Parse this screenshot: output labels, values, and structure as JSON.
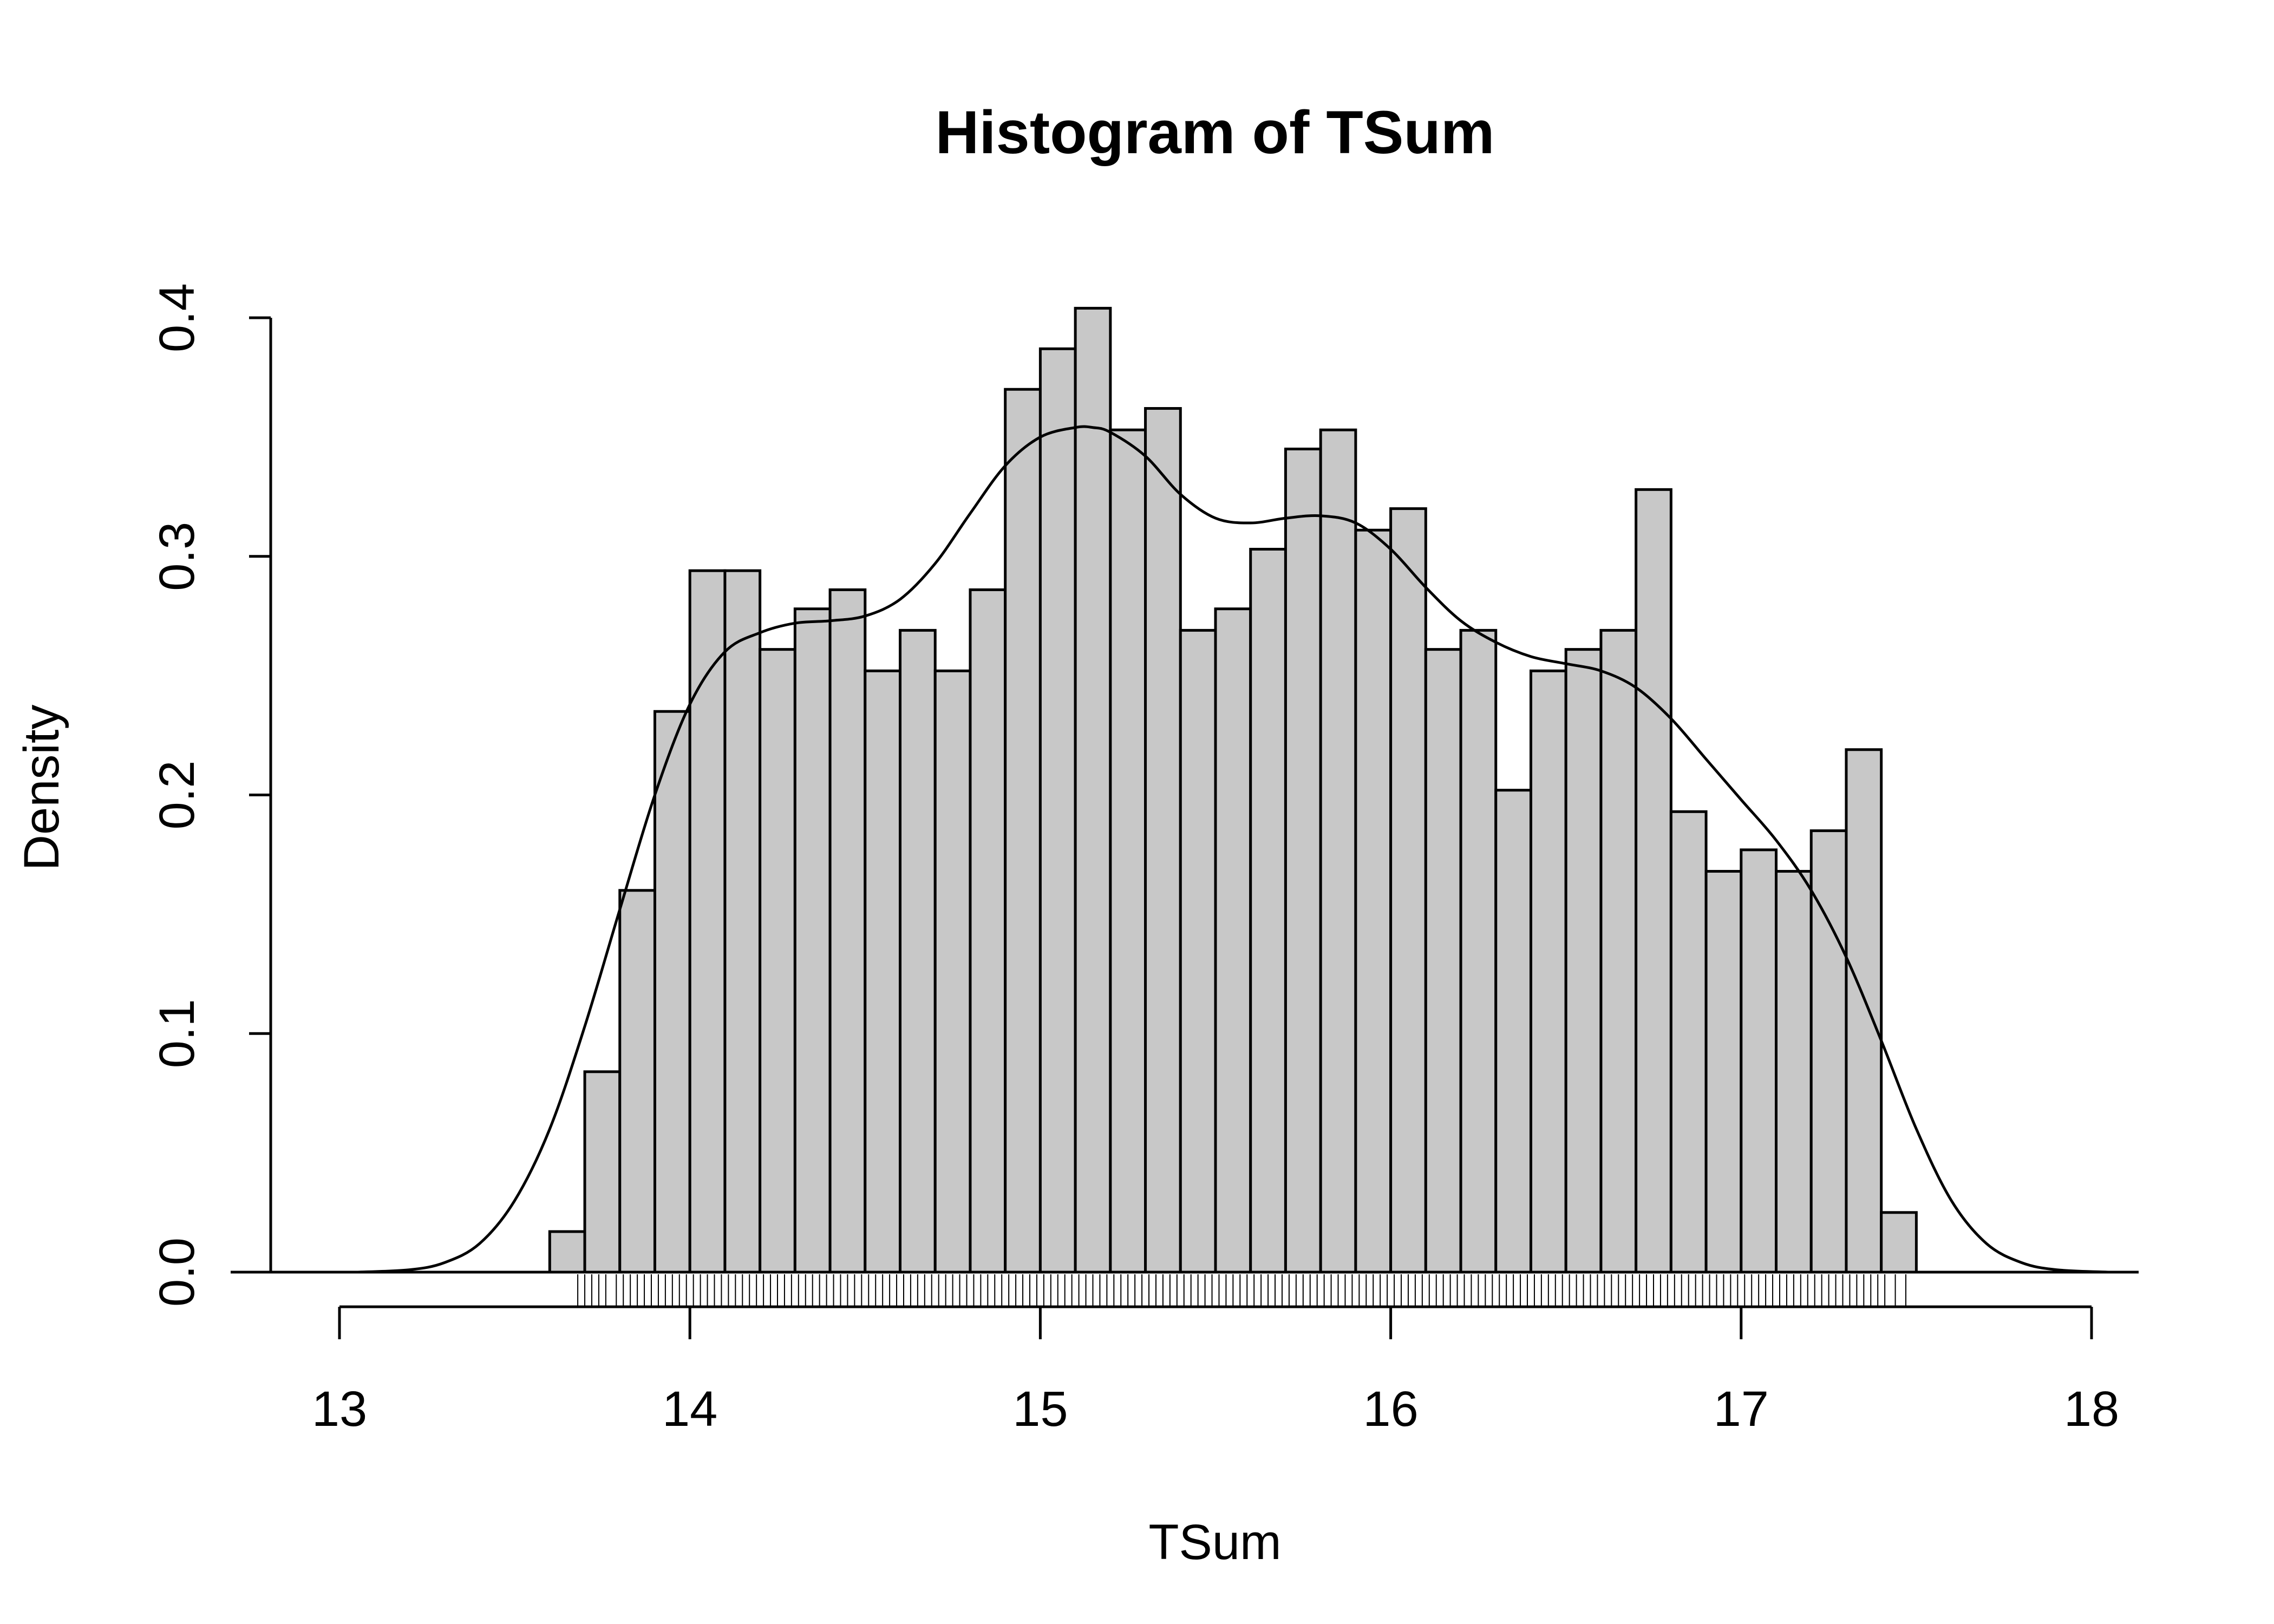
{
  "chart_data": {
    "type": "bar",
    "title": "Histogram of TSum",
    "xlabel": "TSum",
    "ylabel": "Density",
    "xlim": [
      12.8,
      18.1
    ],
    "ylim": [
      0,
      0.4
    ],
    "x_ticks": [
      13,
      14,
      15,
      16,
      17,
      18
    ],
    "y_ticks": [
      "0.0",
      "0.1",
      "0.2",
      "0.3",
      "0.4"
    ],
    "bin_width": 0.1,
    "bin_start": 13.6,
    "values": [
      0.017,
      0.084,
      0.16,
      0.235,
      0.294,
      0.294,
      0.261,
      0.278,
      0.286,
      0.252,
      0.269,
      0.252,
      0.286,
      0.37,
      0.387,
      0.404,
      0.353,
      0.362,
      0.269,
      0.278,
      0.303,
      0.345,
      0.353,
      0.311,
      0.32,
      0.261,
      0.269,
      0.202,
      0.252,
      0.261,
      0.269,
      0.328,
      0.193,
      0.168,
      0.177,
      0.168,
      0.185,
      0.219,
      0.025
    ],
    "density_curve": {
      "x": [
        13.05,
        13.2,
        13.3,
        13.4,
        13.5,
        13.6,
        13.7,
        13.8,
        13.9,
        14.0,
        14.1,
        14.2,
        14.3,
        14.4,
        14.5,
        14.6,
        14.7,
        14.8,
        14.9,
        15.0,
        15.1,
        15.15,
        15.2,
        15.3,
        15.4,
        15.5,
        15.6,
        15.7,
        15.8,
        15.9,
        16.0,
        16.1,
        16.2,
        16.3,
        16.4,
        16.5,
        16.6,
        16.7,
        16.8,
        16.9,
        17.0,
        17.1,
        17.2,
        17.3,
        17.4,
        17.5,
        17.6,
        17.7,
        17.8,
        17.9,
        18.05
      ],
      "y": [
        0.0,
        0.001,
        0.004,
        0.012,
        0.03,
        0.06,
        0.103,
        0.152,
        0.2,
        0.238,
        0.26,
        0.268,
        0.272,
        0.273,
        0.275,
        0.282,
        0.297,
        0.318,
        0.338,
        0.35,
        0.354,
        0.354,
        0.352,
        0.342,
        0.326,
        0.316,
        0.314,
        0.316,
        0.317,
        0.314,
        0.303,
        0.287,
        0.273,
        0.264,
        0.258,
        0.255,
        0.252,
        0.245,
        0.232,
        0.215,
        0.198,
        0.181,
        0.16,
        0.132,
        0.097,
        0.06,
        0.03,
        0.012,
        0.004,
        0.001,
        0.0
      ]
    },
    "rug_x": [
      13.68,
      13.7,
      13.72,
      13.74,
      13.76,
      13.79,
      13.81,
      13.83,
      13.85,
      13.87,
      13.89,
      13.91,
      13.93,
      13.95,
      13.97,
      13.99,
      14.01,
      14.03,
      14.05,
      14.07,
      14.09,
      14.11,
      14.13,
      14.15,
      14.17,
      14.19,
      14.21,
      14.23,
      14.25,
      14.27,
      14.29,
      14.31,
      14.33,
      14.35,
      14.37,
      14.39,
      14.41,
      14.43,
      14.45,
      14.47,
      14.49,
      14.51,
      14.53,
      14.55,
      14.57,
      14.59,
      14.61,
      14.63,
      14.65,
      14.67,
      14.69,
      14.71,
      14.73,
      14.75,
      14.77,
      14.79,
      14.81,
      14.83,
      14.85,
      14.87,
      14.89,
      14.91,
      14.93,
      14.95,
      14.97,
      14.99,
      15.01,
      15.03,
      15.05,
      15.07,
      15.09,
      15.11,
      15.13,
      15.15,
      15.17,
      15.19,
      15.21,
      15.23,
      15.25,
      15.27,
      15.29,
      15.31,
      15.33,
      15.35,
      15.37,
      15.39,
      15.41,
      15.43,
      15.45,
      15.47,
      15.49,
      15.51,
      15.53,
      15.55,
      15.57,
      15.59,
      15.61,
      15.63,
      15.65,
      15.67,
      15.69,
      15.71,
      15.73,
      15.75,
      15.77,
      15.79,
      15.81,
      15.83,
      15.85,
      15.87,
      15.89,
      15.91,
      15.93,
      15.95,
      15.97,
      15.99,
      16.01,
      16.03,
      16.05,
      16.07,
      16.09,
      16.11,
      16.13,
      16.15,
      16.17,
      16.19,
      16.21,
      16.23,
      16.25,
      16.27,
      16.29,
      16.31,
      16.33,
      16.35,
      16.37,
      16.39,
      16.41,
      16.43,
      16.45,
      16.47,
      16.49,
      16.51,
      16.53,
      16.55,
      16.57,
      16.59,
      16.61,
      16.63,
      16.65,
      16.67,
      16.69,
      16.71,
      16.73,
      16.75,
      16.77,
      16.79,
      16.81,
      16.83,
      16.85,
      16.87,
      16.89,
      16.91,
      16.93,
      16.95,
      16.97,
      16.99,
      17.01,
      17.03,
      17.05,
      17.07,
      17.09,
      17.11,
      17.13,
      17.15,
      17.17,
      17.19,
      17.21,
      17.23,
      17.25,
      17.27,
      17.29,
      17.31,
      17.33,
      17.35,
      17.37,
      17.39,
      17.41,
      17.44,
      17.47
    ],
    "colors": {
      "bar_fill": "#c8c8c8",
      "stroke": "#000000",
      "background": "#ffffff"
    }
  }
}
